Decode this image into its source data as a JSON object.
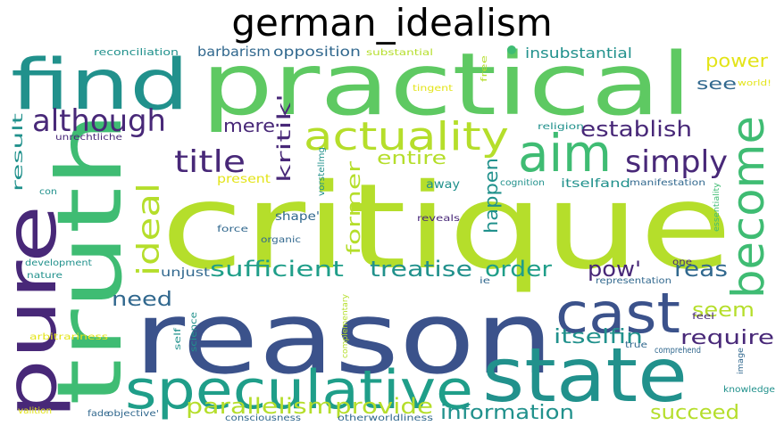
{
  "title": "german_idealism",
  "colors": {
    "yellow": "#e3e418",
    "lime": "#b5de2b",
    "lightgreen": "#5ec962",
    "green": "#3fbc73",
    "teal": "#21918c",
    "cyan": "#1f9e89",
    "blue": "#31688e",
    "indigo": "#3b528b",
    "purple": "#482878",
    "darkpurple": "#440154"
  },
  "words": [
    {
      "text": "critique",
      "color": "lime"
    },
    {
      "text": "reason",
      "color": "indigo"
    },
    {
      "text": "practical",
      "color": "lightgreen"
    },
    {
      "text": "truth",
      "color": "green"
    },
    {
      "text": "pure",
      "color": "purple"
    },
    {
      "text": "find",
      "color": "teal"
    },
    {
      "text": "state",
      "color": "teal"
    },
    {
      "text": "speculative",
      "color": "cyan"
    },
    {
      "text": "cast",
      "color": "indigo"
    },
    {
      "text": "aim",
      "color": "green"
    },
    {
      "text": "become",
      "color": "green"
    },
    {
      "text": "actuality",
      "color": "lime"
    },
    {
      "text": "although",
      "color": "purple"
    },
    {
      "text": "simply",
      "color": "purple"
    },
    {
      "text": "title",
      "color": "purple"
    },
    {
      "text": "ideal",
      "color": "lime"
    },
    {
      "text": "establish",
      "color": "purple"
    },
    {
      "text": "sufficient",
      "color": "cyan"
    },
    {
      "text": "treatise",
      "color": "teal"
    },
    {
      "text": "order",
      "color": "cyan"
    },
    {
      "text": "pow'",
      "color": "purple"
    },
    {
      "text": "reas",
      "color": "blue"
    },
    {
      "text": "parallelism",
      "color": "lime"
    },
    {
      "text": "provide",
      "color": "lime"
    },
    {
      "text": "information",
      "color": "teal"
    },
    {
      "text": "succeed",
      "color": "lime"
    },
    {
      "text": "require",
      "color": "purple"
    },
    {
      "text": "itselfin",
      "color": "teal"
    },
    {
      "text": "seem",
      "color": "lime"
    },
    {
      "text": "need",
      "color": "blue"
    },
    {
      "text": "mere",
      "color": "purple"
    },
    {
      "text": "kritik'",
      "color": "purple"
    },
    {
      "text": "entire",
      "color": "lime"
    },
    {
      "text": "former",
      "color": "lime"
    },
    {
      "text": "happen",
      "color": "teal"
    },
    {
      "text": "power",
      "color": "yellow"
    },
    {
      "text": "see",
      "color": "blue"
    },
    {
      "text": "insubstantial",
      "color": "teal"
    },
    {
      "text": "opposition",
      "color": "blue"
    },
    {
      "text": "barbarism",
      "color": "blue"
    },
    {
      "text": "result",
      "color": "teal"
    },
    {
      "text": "away",
      "color": "teal"
    },
    {
      "text": "itselfand",
      "color": "teal"
    },
    {
      "text": "shape'",
      "color": "blue"
    },
    {
      "text": "unjust",
      "color": "blue"
    },
    {
      "text": "present",
      "color": "yellow"
    },
    {
      "text": "reconciliation",
      "color": "teal"
    },
    {
      "text": "substantial",
      "color": "lime"
    },
    {
      "text": "tingent",
      "color": "yellow"
    },
    {
      "text": "free",
      "color": "lime"
    },
    {
      "text": "world!",
      "color": "yellow"
    },
    {
      "text": "religion",
      "color": "teal"
    },
    {
      "text": "unrechtliche",
      "color": "purple"
    },
    {
      "text": "vorstellmg",
      "color": "teal"
    },
    {
      "text": "cognition",
      "color": "teal"
    },
    {
      "text": "manifestation",
      "color": "blue"
    },
    {
      "text": "essentiality",
      "color": "green"
    },
    {
      "text": "con",
      "color": "teal"
    },
    {
      "text": "force",
      "color": "blue"
    },
    {
      "text": "reveals",
      "color": "purple"
    },
    {
      "text": "organic",
      "color": "blue"
    },
    {
      "text": "development",
      "color": "teal"
    },
    {
      "text": "nature",
      "color": "teal"
    },
    {
      "text": "ie",
      "color": "blue"
    },
    {
      "text": "representation",
      "color": "blue"
    },
    {
      "text": "one",
      "color": "purple"
    },
    {
      "text": "feel",
      "color": "purple"
    },
    {
      "text": "self",
      "color": "teal"
    },
    {
      "text": "science",
      "color": "teal"
    },
    {
      "text": "complementary",
      "color": "lime"
    },
    {
      "text": "arbitrariness",
      "color": "yellow"
    },
    {
      "text": "true",
      "color": "blue"
    },
    {
      "text": "comprehend",
      "color": "blue"
    },
    {
      "text": "image",
      "color": "blue"
    },
    {
      "text": "knowledge",
      "color": "teal"
    },
    {
      "text": "valition",
      "color": "yellow"
    },
    {
      "text": "fade",
      "color": "blue"
    },
    {
      "text": "objective'",
      "color": "blue"
    },
    {
      "text": "consciousness",
      "color": "blue"
    },
    {
      "text": "otherworldliness",
      "color": "blue"
    }
  ]
}
